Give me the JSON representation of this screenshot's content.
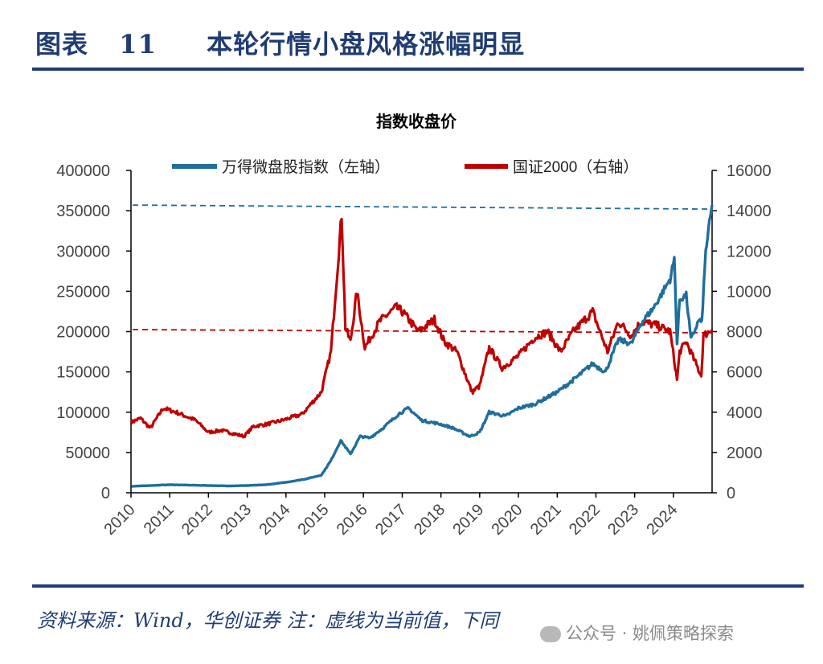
{
  "header": {
    "figure_label": "图表",
    "figure_number": "11",
    "title": "本轮行情小盘风格涨幅明显"
  },
  "footer": {
    "source": "资料来源：Wind，华创证券  注：虚线为当前值，下同",
    "watermark": "公众号 · 姚佩策略探索"
  },
  "colors": {
    "brand": "#1f3d73",
    "series_left": "#1f6e9c",
    "series_right": "#c00000"
  },
  "chart_data": {
    "type": "line",
    "title": "指数收盘价",
    "legend_position": "top",
    "grid": false,
    "x_ticks": [
      "2010",
      "2011",
      "2012",
      "2013",
      "2014",
      "2015",
      "2016",
      "2017",
      "2018",
      "2019",
      "2020",
      "2021",
      "2022",
      "2023",
      "2024"
    ],
    "xlim": [
      "2010-01-01",
      "2024-12-31"
    ],
    "y_left": {
      "ticks": [
        "0",
        "50000",
        "100000",
        "150000",
        "200000",
        "250000",
        "300000",
        "350000",
        "400000"
      ],
      "ylim": [
        0,
        400000
      ]
    },
    "y_right": {
      "ticks": [
        "0",
        "2000",
        "4000",
        "6000",
        "8000",
        "10000",
        "12000",
        "14000",
        "16000"
      ],
      "ylim": [
        0,
        16000
      ]
    },
    "series": [
      {
        "name": "万得微盘股指数（左轴）",
        "axis": "left",
        "color": "#1f6e9c",
        "current_value": 357000,
        "points": [
          [
            "2010-01-04",
            8000
          ],
          [
            "2010-07-01",
            9000
          ],
          [
            "2011-01-01",
            10000
          ],
          [
            "2011-07-01",
            9500
          ],
          [
            "2012-01-01",
            9000
          ],
          [
            "2012-07-01",
            8500
          ],
          [
            "2013-01-01",
            9000
          ],
          [
            "2013-07-01",
            10000
          ],
          [
            "2014-01-01",
            13000
          ],
          [
            "2014-07-01",
            17000
          ],
          [
            "2014-12-01",
            22000
          ],
          [
            "2015-03-01",
            40000
          ],
          [
            "2015-06-01",
            65000
          ],
          [
            "2015-09-01",
            48000
          ],
          [
            "2015-12-01",
            70000
          ],
          [
            "2016-03-01",
            68000
          ],
          [
            "2016-07-01",
            80000
          ],
          [
            "2016-12-01",
            98000
          ],
          [
            "2017-03-01",
            105000
          ],
          [
            "2017-07-01",
            90000
          ],
          [
            "2018-01-01",
            85000
          ],
          [
            "2018-05-01",
            80000
          ],
          [
            "2018-10-01",
            70000
          ],
          [
            "2019-01-01",
            75000
          ],
          [
            "2019-04-01",
            100000
          ],
          [
            "2019-09-01",
            95000
          ],
          [
            "2020-01-01",
            105000
          ],
          [
            "2020-06-01",
            110000
          ],
          [
            "2021-01-01",
            125000
          ],
          [
            "2021-06-01",
            140000
          ],
          [
            "2021-12-01",
            160000
          ],
          [
            "2022-04-01",
            150000
          ],
          [
            "2022-08-01",
            190000
          ],
          [
            "2022-12-01",
            185000
          ],
          [
            "2023-03-01",
            210000
          ],
          [
            "2023-07-01",
            230000
          ],
          [
            "2023-12-01",
            265000
          ],
          [
            "2024-01-10",
            290000
          ],
          [
            "2024-02-05",
            185000
          ],
          [
            "2024-03-01",
            240000
          ],
          [
            "2024-05-01",
            245000
          ],
          [
            "2024-06-15",
            190000
          ],
          [
            "2024-09-01",
            215000
          ],
          [
            "2024-09-25",
            210000
          ],
          [
            "2024-11-01",
            300000
          ],
          [
            "2024-12-31",
            357000
          ]
        ]
      },
      {
        "name": "国证2000（右轴）",
        "axis": "right",
        "color": "#c00000",
        "current_value": 8100,
        "points": [
          [
            "2010-01-04",
            3500
          ],
          [
            "2010-04-01",
            3700
          ],
          [
            "2010-07-01",
            3200
          ],
          [
            "2010-11-01",
            4200
          ],
          [
            "2011-03-01",
            4000
          ],
          [
            "2011-09-01",
            3600
          ],
          [
            "2012-01-01",
            3000
          ],
          [
            "2012-05-01",
            3100
          ],
          [
            "2012-12-01",
            2800
          ],
          [
            "2013-03-01",
            3300
          ],
          [
            "2013-07-01",
            3400
          ],
          [
            "2013-12-01",
            3600
          ],
          [
            "2014-06-01",
            3900
          ],
          [
            "2014-12-01",
            5000
          ],
          [
            "2015-03-01",
            7000
          ],
          [
            "2015-06-10",
            13800
          ],
          [
            "2015-07-15",
            8200
          ],
          [
            "2015-09-01",
            7500
          ],
          [
            "2015-11-01",
            10000
          ],
          [
            "2016-01-15",
            7200
          ],
          [
            "2016-06-01",
            8500
          ],
          [
            "2016-11-01",
            9200
          ],
          [
            "2017-01-01",
            9000
          ],
          [
            "2017-06-01",
            8000
          ],
          [
            "2017-11-01",
            8600
          ],
          [
            "2018-02-01",
            7500
          ],
          [
            "2018-06-01",
            7000
          ],
          [
            "2018-10-20",
            5000
          ],
          [
            "2019-01-01",
            5300
          ],
          [
            "2019-04-01",
            7200
          ],
          [
            "2019-08-01",
            6200
          ],
          [
            "2020-01-01",
            6800
          ],
          [
            "2020-06-01",
            7700
          ],
          [
            "2020-10-01",
            8000
          ],
          [
            "2021-02-01",
            7000
          ],
          [
            "2021-06-01",
            8000
          ],
          [
            "2021-12-01",
            9000
          ],
          [
            "2022-04-20",
            7000
          ],
          [
            "2022-08-01",
            8500
          ],
          [
            "2022-12-01",
            7800
          ],
          [
            "2023-03-01",
            8500
          ],
          [
            "2023-08-01",
            8300
          ],
          [
            "2023-12-01",
            8000
          ],
          [
            "2024-02-05",
            5600
          ],
          [
            "2024-03-01",
            7000
          ],
          [
            "2024-05-01",
            7500
          ],
          [
            "2024-09-20",
            5800
          ],
          [
            "2024-10-10",
            7800
          ],
          [
            "2024-12-31",
            8100
          ]
        ]
      }
    ]
  }
}
